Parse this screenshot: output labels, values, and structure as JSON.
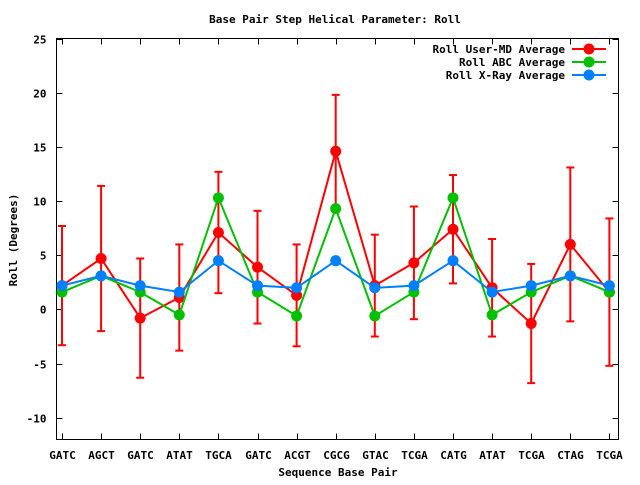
{
  "chart_data": {
    "type": "line",
    "title": "Base Pair Step Helical Parameter: Roll",
    "xlabel": "Sequence Base Pair",
    "ylabel": "Roll (Degrees)",
    "ylim": [
      -12,
      25
    ],
    "yticks": [
      -10,
      -5,
      0,
      5,
      10,
      15,
      20,
      25
    ],
    "categories": [
      "GATC",
      "AGCT",
      "GATC",
      "ATAT",
      "TGCA",
      "GATC",
      "ACGT",
      "CGCG",
      "GTAC",
      "TCGA",
      "CATG",
      "ATAT",
      "TCGA",
      "CTAG",
      "TCGA"
    ],
    "grid": false,
    "legend_position": "top-right",
    "series": [
      {
        "name": "Roll User-MD Average",
        "color": "#ff0000",
        "values": [
          2.2,
          4.7,
          -0.8,
          1.1,
          7.1,
          3.9,
          1.3,
          14.6,
          2.2,
          4.3,
          7.4,
          2.0,
          -1.3,
          6.0,
          1.6
        ],
        "errors": [
          5.5,
          6.7,
          5.5,
          4.9,
          5.6,
          5.2,
          4.7,
          5.2,
          4.7,
          5.2,
          5.0,
          4.5,
          5.5,
          7.1,
          6.8
        ]
      },
      {
        "name": "Roll ABC Average",
        "color": "#00c000",
        "values": [
          1.6,
          3.1,
          1.6,
          -0.5,
          10.3,
          1.6,
          -0.6,
          9.3,
          -0.6,
          1.6,
          10.3,
          -0.5,
          1.6,
          3.1,
          1.6
        ]
      },
      {
        "name": "Roll X-Ray Average",
        "color": "#0080ff",
        "values": [
          2.2,
          3.1,
          2.2,
          1.6,
          4.5,
          2.2,
          2.0,
          4.5,
          2.0,
          2.2,
          4.5,
          1.6,
          2.2,
          3.1,
          2.2
        ]
      }
    ]
  }
}
